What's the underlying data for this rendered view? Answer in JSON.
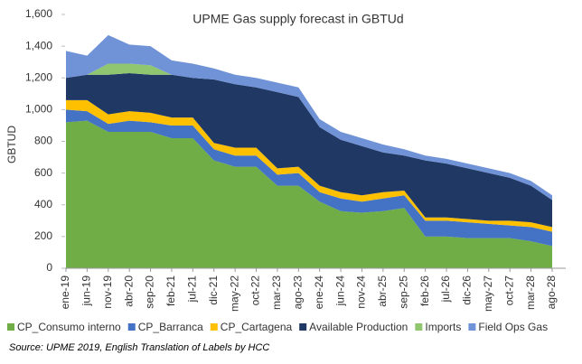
{
  "chart_data": {
    "type": "stacked_area",
    "title": "UPME Gas supply forecast in GBTUd",
    "y_label": "GBTUD",
    "source": "Source:  UPME 2019, English Translation of Labels by HCC",
    "categories": [
      "ene-19",
      "jun-19",
      "nov-19",
      "abr-20",
      "sep-20",
      "feb-21",
      "jul-21",
      "dic-21",
      "may-22",
      "oct-22",
      "mar-23",
      "ago-23",
      "ene-24",
      "jun-24",
      "nov-24",
      "abr-25",
      "sep-25",
      "feb-26",
      "jul-26",
      "dic-26",
      "may-27",
      "oct-27",
      "mar-28",
      "ago-28"
    ],
    "series": [
      {
        "name": "CP_Consumo interno",
        "color": "#70ad47",
        "values": [
          920,
          930,
          860,
          860,
          860,
          820,
          820,
          680,
          640,
          640,
          520,
          520,
          420,
          360,
          350,
          360,
          380,
          200,
          200,
          190,
          190,
          190,
          170,
          140
        ]
      },
      {
        "name": "CP_Barranca",
        "color": "#4472c4",
        "values": [
          80,
          60,
          50,
          70,
          60,
          80,
          80,
          70,
          70,
          70,
          70,
          80,
          60,
          80,
          70,
          80,
          80,
          100,
          100,
          100,
          90,
          80,
          90,
          90
        ]
      },
      {
        "name": "CP_Cartagena",
        "color": "#ffc000",
        "values": [
          60,
          70,
          60,
          60,
          60,
          50,
          50,
          40,
          50,
          50,
          40,
          40,
          40,
          40,
          40,
          40,
          30,
          20,
          20,
          20,
          20,
          30,
          30,
          30
        ]
      },
      {
        "name": "Available Production",
        "color": "#203864",
        "values": [
          140,
          160,
          250,
          240,
          240,
          270,
          250,
          400,
          400,
          380,
          480,
          440,
          370,
          330,
          310,
          250,
          220,
          360,
          340,
          320,
          300,
          270,
          230,
          170
        ]
      },
      {
        "name": "Imports",
        "color": "#8fc66f",
        "values": [
          0,
          0,
          70,
          60,
          60,
          0,
          0,
          0,
          0,
          0,
          0,
          0,
          0,
          0,
          0,
          0,
          0,
          0,
          0,
          0,
          0,
          0,
          0,
          0
        ]
      },
      {
        "name": "Field Ops Gas",
        "color": "#7092d6",
        "values": [
          170,
          120,
          180,
          120,
          120,
          90,
          90,
          70,
          60,
          60,
          60,
          60,
          50,
          50,
          50,
          50,
          40,
          30,
          30,
          30,
          30,
          30,
          30,
          30
        ]
      }
    ],
    "ylim": [
      0,
      1600
    ],
    "yticks": [
      0,
      200,
      400,
      600,
      800,
      {
        "value": 1000,
        "label": "1,000"
      },
      {
        "value": 1200,
        "label": "1,200"
      },
      {
        "value": 1400,
        "label": "1,400"
      },
      {
        "value": 1600,
        "label": "1,600"
      }
    ],
    "grid": false
  }
}
